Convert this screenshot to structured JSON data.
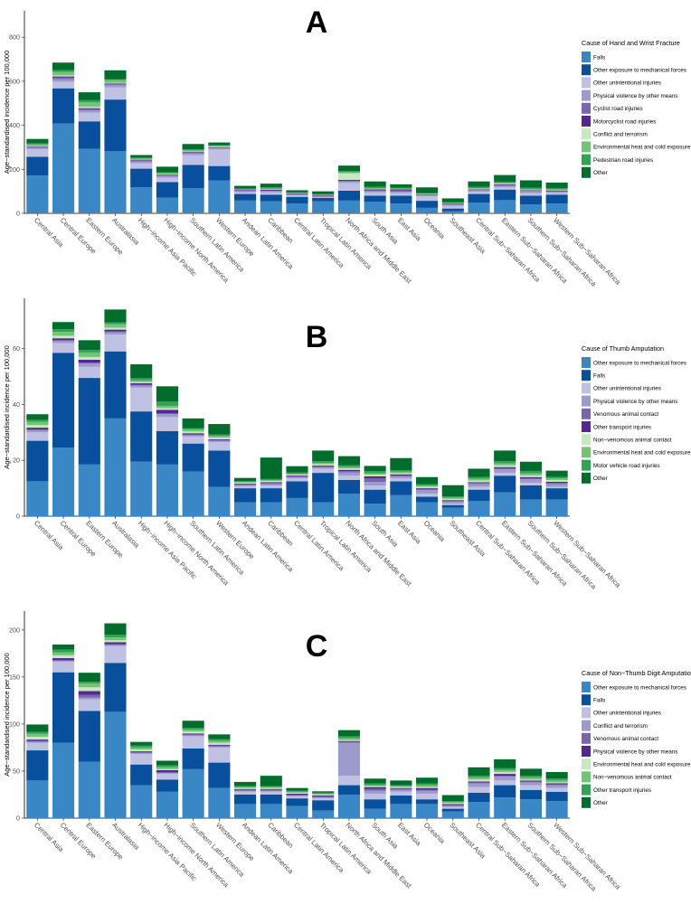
{
  "chart_data": [
    {
      "type": "bar",
      "stacked": true,
      "panel_label": "A",
      "ylabel": "Age−standardised incidence per 100,000",
      "ylim": [
        0,
        920
      ],
      "yticks": [
        0,
        200,
        400,
        600,
        800
      ],
      "legend_title": "Cause of Hand and Wrist Fracture",
      "legend_position": "right",
      "categories": [
        "Central Asia",
        "Central Europe",
        "Eastern Europe",
        "Australasia",
        "High−income Asia Pacific",
        "High−income North America",
        "Southern Latin America",
        "Western Europe",
        "Andean Latin America",
        "Caribbean",
        "Central Latin America",
        "Tropical Latin America",
        "North Africa and Middle East",
        "South Asia",
        "East Asia",
        "Oceania",
        "Southeast Asia",
        "Central Sub−Saharan Africa",
        "Eastern Sub−Saharan Africa",
        "Southern Sub−Saharan Africa",
        "Western Sub−Saharan Africa"
      ],
      "series": [
        {
          "name": "Falls",
          "color": "#3a87c5",
          "values": [
            172,
            408,
            293,
            282,
            118,
            72,
            115,
            150,
            58,
            55,
            45,
            55,
            58,
            52,
            45,
            25,
            10,
            48,
            60,
            40,
            45
          ]
        },
        {
          "name": "Other exposure to mechanical forces",
          "color": "#084f9e",
          "values": [
            85,
            160,
            125,
            235,
            85,
            70,
            105,
            65,
            30,
            30,
            30,
            15,
            45,
            28,
            35,
            32,
            12,
            40,
            48,
            40,
            40
          ]
        },
        {
          "name": "Other unintentional injuries",
          "color": "#bfc1e2",
          "values": [
            35,
            30,
            40,
            55,
            25,
            20,
            45,
            75,
            8,
            10,
            6,
            3,
            35,
            15,
            12,
            20,
            12,
            10,
            10,
            12,
            8
          ]
        },
        {
          "name": "Physical violence by other means",
          "color": "#9d9acc",
          "values": [
            5,
            12,
            10,
            10,
            8,
            8,
            8,
            5,
            4,
            6,
            3,
            3,
            7,
            6,
            6,
            6,
            4,
            6,
            7,
            8,
            5
          ]
        },
        {
          "name": "Cyclist road injuries",
          "color": "#7865b0",
          "values": [
            3,
            8,
            6,
            5,
            5,
            3,
            3,
            4,
            2,
            2,
            2,
            2,
            3,
            3,
            6,
            1,
            2,
            2,
            2,
            2,
            2
          ]
        },
        {
          "name": "Motorcyclist road injuries",
          "color": "#54278f",
          "values": [
            3,
            4,
            4,
            3,
            3,
            3,
            3,
            2,
            4,
            5,
            3,
            3,
            4,
            5,
            5,
            2,
            4,
            3,
            4,
            3,
            4
          ]
        },
        {
          "name": "Conflict and terrorism",
          "color": "#c7e9c0",
          "values": [
            2,
            5,
            6,
            3,
            2,
            2,
            2,
            2,
            1,
            2,
            1,
            1,
            30,
            2,
            1,
            1,
            1,
            3,
            3,
            2,
            2
          ]
        },
        {
          "name": "Environmental heat and cold exposure",
          "color": "#74c476",
          "values": [
            8,
            15,
            20,
            12,
            3,
            4,
            5,
            4,
            2,
            3,
            2,
            2,
            5,
            3,
            3,
            2,
            2,
            3,
            4,
            4,
            3
          ]
        },
        {
          "name": "Pedestrian road injuries",
          "color": "#31a354",
          "values": [
            5,
            8,
            10,
            5,
            4,
            5,
            5,
            3,
            3,
            5,
            3,
            3,
            5,
            6,
            4,
            3,
            4,
            5,
            6,
            6,
            5
          ]
        },
        {
          "name": "Other",
          "color": "#006d2c",
          "values": [
            20,
            35,
            36,
            40,
            12,
            25,
            24,
            12,
            13,
            17,
            10,
            13,
            25,
            25,
            15,
            26,
            17,
            25,
            30,
            33,
            26
          ]
        }
      ]
    },
    {
      "type": "bar",
      "stacked": true,
      "panel_label": "B",
      "ylabel": "Age−standardised incidence per 100,000",
      "ylim": [
        0,
        78
      ],
      "yticks": [
        0,
        20,
        40,
        60
      ],
      "legend_title": "Cause of Thumb Amputation",
      "legend_position": "right",
      "categories": [
        "Central Asia",
        "Central Europe",
        "Eastern Europe",
        "Australasia",
        "High−income Asia Pacific",
        "High−income North America",
        "Southern Latin America",
        "Western Europe",
        "Andean Latin America",
        "Caribbean",
        "Central Latin America",
        "Tropical Latin America",
        "North Africa and Middle East",
        "South Asia",
        "East Asia",
        "Oceania",
        "Southeast Asia",
        "Central Sub−Saharan Africa",
        "Eastern Sub−Saharan Africa",
        "Southern Sub−Saharan Africa",
        "Western Sub−Saharan Africa"
      ],
      "series": [
        {
          "name": "Other exposure to mechanical forces",
          "color": "#3a87c5",
          "values": [
            12.5,
            24.5,
            18.5,
            35,
            19.5,
            18.5,
            16,
            10.5,
            5,
            5,
            6.5,
            5,
            8,
            4.5,
            7.5,
            5,
            3,
            5.5,
            8.5,
            6,
            6
          ]
        },
        {
          "name": "Falls",
          "color": "#084f9e",
          "values": [
            14.5,
            34,
            31,
            24,
            18,
            12,
            10,
            13,
            5,
            5,
            6,
            10.5,
            5,
            5,
            5,
            2,
            1,
            4,
            6,
            5,
            4
          ]
        },
        {
          "name": "Other unintentional injuries",
          "color": "#bfc1e2",
          "values": [
            3,
            3.5,
            4,
            6,
            8.5,
            5,
            2.5,
            3,
            0.7,
            1,
            1,
            1.5,
            1.5,
            1.5,
            1,
            1,
            0.5,
            1,
            1,
            1,
            0.5
          ]
        },
        {
          "name": "Physical violence by other means",
          "color": "#9d9acc",
          "values": [
            0.7,
            0.7,
            1.2,
            0.8,
            0.7,
            1,
            0.5,
            0.5,
            0.4,
            0.5,
            0.5,
            0.5,
            1.2,
            1.3,
            0.7,
            1.3,
            0.7,
            1,
            1.3,
            1.2,
            1
          ]
        },
        {
          "name": "Venomous animal contact",
          "color": "#7865b0",
          "values": [
            0.4,
            0.3,
            0.3,
            0.4,
            0.4,
            0.4,
            0.3,
            0.2,
            0.3,
            0.4,
            0.3,
            0.3,
            0.4,
            1.3,
            0.4,
            0.4,
            0.4,
            0.4,
            0.4,
            0.4,
            0.4
          ]
        },
        {
          "name": "Other transport injuries",
          "color": "#54278f",
          "values": [
            0.6,
            0.7,
            1,
            0.6,
            0.5,
            1.2,
            0.4,
            0.3,
            0.3,
            0.3,
            0.3,
            0.3,
            0.5,
            0.7,
            0.4,
            0.3,
            0.2,
            0.3,
            0.4,
            0.4,
            0.4
          ]
        },
        {
          "name": "Non−venomous animal contact",
          "color": "#c7e9c0",
          "values": [
            0.9,
            0.9,
            1,
            0.7,
            0.4,
            0.6,
            0.6,
            0.6,
            0.3,
            0.4,
            0.3,
            0.5,
            0.5,
            0.6,
            0.4,
            0.5,
            0.4,
            0.6,
            0.6,
            0.6,
            0.6
          ]
        },
        {
          "name": "Environmental heat and cold exposure",
          "color": "#74c476",
          "values": [
            1.2,
            1.4,
            1.6,
            1.2,
            0.6,
            0.8,
            0.7,
            0.6,
            0.3,
            0.3,
            0.3,
            0.5,
            0.5,
            0.5,
            0.5,
            0.5,
            0.4,
            0.6,
            0.7,
            0.7,
            0.6
          ]
        },
        {
          "name": "Motor vehicle road injuries",
          "color": "#31a354",
          "values": [
            0.7,
            0.9,
            0.9,
            0.7,
            0.8,
            1.5,
            0.5,
            0.5,
            0.3,
            0.4,
            0.4,
            0.6,
            0.6,
            0.7,
            0.6,
            0.5,
            0.5,
            0.6,
            0.8,
            0.9,
            0.6
          ]
        },
        {
          "name": "Other",
          "color": "#006d2c",
          "values": [
            2,
            2.6,
            3.5,
            4.6,
            5,
            5.5,
            3.5,
            3.8,
            1.1,
            7.7,
            2.3,
            3.8,
            3.3,
            1.9,
            4.3,
            2.5,
            4,
            3,
            3.8,
            3.3,
            2.2
          ]
        }
      ]
    },
    {
      "type": "bar",
      "stacked": true,
      "panel_label": "C",
      "ylabel": "Age−standardised incidence per 100,000",
      "ylim": [
        0,
        220
      ],
      "yticks": [
        0,
        50,
        100,
        150,
        200
      ],
      "legend_title": "Cause of Non−Thumb Digit Amputation",
      "legend_position": "right",
      "categories": [
        "Central Asia",
        "Central Europe",
        "Eastern Europe",
        "Australasia",
        "High−income Asia Pacific",
        "High−income North America",
        "Southern Latin America",
        "Western Europe",
        "Andean Latin America",
        "Caribbean",
        "Central Latin America",
        "Tropical Latin America",
        "North Africa and Middle East",
        "South Asia",
        "East Asia",
        "Oceania",
        "Southeast Asia",
        "Central Sub−Saharan Africa",
        "Eastern Sub−Saharan Africa",
        "Southern Sub−Saharan Africa",
        "Western Sub−Saharan Africa"
      ],
      "series": [
        {
          "name": "Other exposure to mechanical forces",
          "color": "#3a87c5",
          "values": [
            40,
            80,
            60,
            113,
            35,
            28,
            52,
            32,
            15,
            15,
            13,
            8,
            25,
            10,
            15,
            15,
            7,
            17,
            22,
            20,
            18
          ]
        },
        {
          "name": "Falls",
          "color": "#084f9e",
          "values": [
            32,
            75,
            54,
            52,
            22,
            13,
            22,
            27,
            10,
            10,
            8,
            11,
            10,
            10,
            9,
            5,
            3,
            10,
            13,
            10,
            10
          ]
        },
        {
          "name": "Other unintentional injuries",
          "color": "#bfc1e2",
          "values": [
            8,
            11,
            12,
            18,
            11,
            6,
            13,
            16,
            3,
            3,
            2,
            2,
            10,
            6,
            4,
            6,
            2,
            6,
            5,
            5,
            4
          ]
        },
        {
          "name": "Conflict and terrorism",
          "color": "#9d9acc",
          "values": [
            1,
            1,
            2,
            1,
            1,
            1,
            1,
            1,
            1,
            1,
            1,
            1,
            35,
            3,
            2,
            3,
            1,
            4,
            4,
            3,
            3
          ]
        },
        {
          "name": "Venomous animal contact",
          "color": "#7865b0",
          "values": [
            1,
            1,
            3,
            1,
            1,
            1,
            1,
            1,
            1,
            1,
            1,
            1,
            1,
            2,
            1,
            1,
            1,
            1,
            1,
            1,
            1
          ]
        },
        {
          "name": "Physical violence by other means",
          "color": "#54278f",
          "values": [
            1.5,
            2,
            4,
            2,
            1,
            2,
            1,
            1,
            1,
            1,
            1,
            1,
            1,
            2,
            1,
            2,
            1,
            1,
            2,
            1,
            1
          ]
        },
        {
          "name": "Environmental heat and cold exposure",
          "color": "#c7e9c0",
          "values": [
            3,
            3,
            4,
            2,
            2,
            1,
            2,
            2,
            1,
            1,
            1,
            1,
            1,
            1,
            1,
            1,
            1,
            2,
            2,
            1,
            1
          ]
        },
        {
          "name": "Non−venomous animal contact",
          "color": "#74c476",
          "values": [
            3,
            3,
            4,
            3,
            2,
            2,
            2,
            2,
            1,
            1,
            1,
            1,
            2,
            1,
            1,
            2,
            1,
            2,
            2,
            2,
            2
          ]
        },
        {
          "name": "Other transport injuries",
          "color": "#31a354",
          "values": [
            2,
            3,
            2,
            3,
            2,
            2,
            2,
            2,
            1,
            1,
            1,
            1,
            2,
            2,
            1,
            2,
            1,
            2,
            2,
            2,
            2
          ]
        },
        {
          "name": "Other",
          "color": "#006d2c",
          "values": [
            8,
            5.5,
            9.5,
            12,
            4,
            5,
            7.5,
            5,
            4.5,
            11,
            3,
            1.5,
            6.5,
            5,
            5,
            6,
            6.5,
            9,
            9.5,
            7.5,
            7
          ]
        }
      ]
    }
  ]
}
